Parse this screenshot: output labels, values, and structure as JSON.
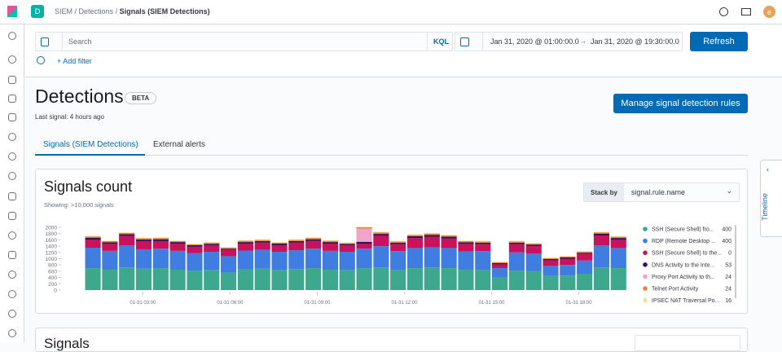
{
  "topbar": {
    "badge": "D",
    "breadcrumbs": [
      "SIEM",
      "Detections",
      "Signals (SIEM Detections)"
    ],
    "avatar": "e"
  },
  "query_bar": {
    "search_placeholder": "Search",
    "language": "KQL",
    "start": "Jan 31, 2020 @ 01:00:00.0",
    "end": "Jan 31, 2020 @ 19:30:00.0",
    "refresh": "Refresh",
    "add_filter": "+ Add filter"
  },
  "header": {
    "title": "Detections",
    "badge": "BETA",
    "subtitle": "Last signal: 4 hours ago",
    "button": "Manage signal detection rules"
  },
  "tabs": [
    "Signals (SIEM Detections)",
    "External alerts"
  ],
  "panel": {
    "title": "Signals count",
    "subtitle": "Showing: >10,000 signals",
    "stack_by_label": "Stack by",
    "stack_by_value": "signal.rule.name"
  },
  "chart_data": {
    "type": "bar",
    "stacked": true,
    "x": [
      60,
      95,
      130,
      165,
      200,
      235,
      270,
      305,
      340,
      375,
      410,
      445,
      480,
      515,
      550,
      585,
      620,
      655,
      690,
      725,
      760,
      795,
      830,
      865,
      900,
      935,
      970,
      1005,
      1040,
      1075,
      1110,
      1145
    ],
    "xlim": [
      60,
      1180
    ],
    "xticks": [
      {
        "value": 180,
        "label": "01-31 03:00"
      },
      {
        "value": 360,
        "label": "01-31 06:00"
      },
      {
        "value": 540,
        "label": "01-31 09:00"
      },
      {
        "value": 720,
        "label": "01-31 12:00"
      },
      {
        "value": 900,
        "label": "01-31 15:00"
      },
      {
        "value": 1080,
        "label": "01-31 18:00"
      }
    ],
    "ylim": [
      0,
      2000
    ],
    "yticks": [
      0,
      200,
      400,
      600,
      800,
      1000,
      1200,
      1400,
      1600,
      1800,
      2000
    ],
    "series": [
      {
        "name": "SSH (Secure Shell) fro...",
        "count": 400,
        "color": "#3ea88e",
        "values": [
          700,
          650,
          720,
          680,
          700,
          650,
          620,
          640,
          560,
          660,
          680,
          640,
          670,
          700,
          650,
          640,
          700,
          720,
          640,
          700,
          720,
          700,
          650,
          640,
          400,
          620,
          600,
          450,
          460,
          520,
          720,
          700
        ]
      },
      {
        "name": "RDP (Remote Desktop ...",
        "count": 400,
        "color": "#3f7ee0",
        "values": [
          650,
          600,
          700,
          620,
          620,
          600,
          560,
          580,
          520,
          600,
          600,
          580,
          600,
          620,
          600,
          580,
          620,
          680,
          600,
          640,
          640,
          640,
          580,
          600,
          300,
          580,
          560,
          320,
          340,
          420,
          700,
          640
        ]
      },
      {
        "name": "SSH (Secure Shell) to the...",
        "count": 0,
        "color": "#c8135c",
        "values": [
          260,
          220,
          300,
          260,
          240,
          230,
          200,
          200,
          200,
          220,
          230,
          210,
          240,
          250,
          230,
          200,
          160,
          330,
          220,
          320,
          340,
          300,
          240,
          220,
          120,
          260,
          240,
          180,
          200,
          210,
          320,
          260
        ]
      },
      {
        "name": "DNS Activity to the Inte...",
        "count": 53,
        "color": "#3a0f5c",
        "values": [
          60,
          50,
          60,
          50,
          60,
          50,
          50,
          50,
          40,
          50,
          50,
          50,
          50,
          50,
          50,
          50,
          60,
          60,
          50,
          60,
          60,
          60,
          50,
          50,
          40,
          50,
          50,
          40,
          40,
          40,
          60,
          60
        ]
      },
      {
        "name": "Proxy Port Activity to th...",
        "count": 24,
        "color": "#f2a5cb",
        "values": [
          0,
          0,
          0,
          0,
          0,
          0,
          0,
          0,
          0,
          0,
          0,
          0,
          0,
          0,
          0,
          0,
          420,
          0,
          0,
          0,
          0,
          0,
          0,
          0,
          0,
          0,
          0,
          0,
          0,
          0,
          0,
          0
        ]
      },
      {
        "name": "Telnet Port Activity",
        "count": 24,
        "color": "#e8833a",
        "values": [
          40,
          40,
          40,
          40,
          40,
          30,
          30,
          40,
          30,
          40,
          40,
          30,
          40,
          40,
          40,
          30,
          40,
          50,
          40,
          40,
          40,
          40,
          40,
          40,
          30,
          40,
          30,
          30,
          30,
          30,
          40,
          40
        ]
      },
      {
        "name": "IPSEC NAT Traversal Po...",
        "count": 16,
        "color": "#f1e49a",
        "values": [
          20,
          20,
          20,
          20,
          20,
          20,
          20,
          20,
          20,
          20,
          20,
          20,
          20,
          20,
          20,
          20,
          20,
          20,
          20,
          20,
          20,
          20,
          20,
          20,
          20,
          20,
          20,
          20,
          20,
          20,
          20,
          20
        ]
      }
    ]
  },
  "signals_panel": {
    "title": "Signals"
  },
  "timeline": "Timeline"
}
